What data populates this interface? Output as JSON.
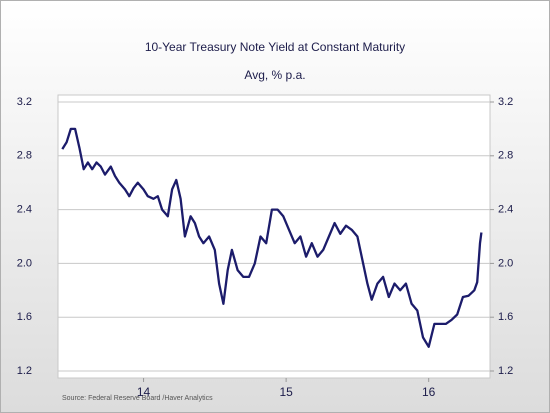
{
  "chart_data": {
    "type": "line",
    "title": "10-Year Treasury Note Yield at Constant Maturity",
    "subtitle": "Avg, % p.a.",
    "source": "Source:  Federal Reserve Board /Haver Analytics",
    "xlim": [
      2013.9,
      2016.93
    ],
    "xticks": [
      {
        "value": 2014.5,
        "label": "14"
      },
      {
        "value": 2015.5,
        "label": "15"
      },
      {
        "value": 2016.5,
        "label": "16"
      }
    ],
    "ylim": [
      1.2,
      3.2
    ],
    "yticks": [
      1.2,
      1.6,
      {
        "value": 2,
        "label": "2.0"
      },
      2.4,
      2.8,
      3.2
    ],
    "y2lim": [
      1.2,
      3.2
    ],
    "y2ticks": [
      1.2,
      1.6,
      {
        "value": 2,
        "label": "2.0"
      },
      2.4,
      2.8,
      3.2
    ],
    "grid": true,
    "series": [
      {
        "name": "10-Year Treasury Note Yield",
        "color": "#1c1c6b",
        "x": [
          2013.93,
          2013.96,
          2013.99,
          2014.02,
          2014.05,
          2014.08,
          2014.11,
          2014.14,
          2014.17,
          2014.2,
          2014.23,
          2014.27,
          2014.3,
          2014.33,
          2014.37,
          2014.4,
          2014.43,
          2014.46,
          2014.5,
          2014.53,
          2014.57,
          2014.6,
          2014.63,
          2014.67,
          2014.7,
          2014.73,
          2014.76,
          2014.79,
          2014.83,
          2014.86,
          2014.89,
          2014.92,
          2014.96,
          2015.0,
          2015.03,
          2015.06,
          2015.09,
          2015.12,
          2015.16,
          2015.2,
          2015.24,
          2015.28,
          2015.32,
          2015.36,
          2015.4,
          2015.44,
          2015.48,
          2015.52,
          2015.56,
          2015.6,
          2015.64,
          2015.68,
          2015.72,
          2015.76,
          2015.8,
          2015.84,
          2015.88,
          2015.92,
          2015.96,
          2016.0,
          2016.03,
          2016.07,
          2016.1,
          2016.14,
          2016.18,
          2016.22,
          2016.26,
          2016.3,
          2016.34,
          2016.38,
          2016.42,
          2016.46,
          2016.5,
          2016.54,
          2016.58,
          2016.62,
          2016.66,
          2016.7,
          2016.74,
          2016.78,
          2016.82,
          2016.84,
          2016.86,
          2016.87
        ],
        "values": [
          2.85,
          2.9,
          3.0,
          3.0,
          2.86,
          2.7,
          2.75,
          2.7,
          2.75,
          2.72,
          2.66,
          2.72,
          2.65,
          2.6,
          2.55,
          2.5,
          2.56,
          2.6,
          2.55,
          2.5,
          2.48,
          2.5,
          2.4,
          2.35,
          2.55,
          2.62,
          2.48,
          2.2,
          2.35,
          2.3,
          2.2,
          2.15,
          2.2,
          2.1,
          1.85,
          1.7,
          1.95,
          2.1,
          1.95,
          1.9,
          1.9,
          2.0,
          2.2,
          2.15,
          2.4,
          2.4,
          2.35,
          2.25,
          2.15,
          2.2,
          2.05,
          2.15,
          2.05,
          2.1,
          2.2,
          2.3,
          2.22,
          2.28,
          2.25,
          2.2,
          2.05,
          1.85,
          1.73,
          1.85,
          1.9,
          1.75,
          1.85,
          1.8,
          1.85,
          1.7,
          1.65,
          1.45,
          1.38,
          1.55,
          1.55,
          1.55,
          1.58,
          1.62,
          1.75,
          1.76,
          1.8,
          1.86,
          2.15,
          2.23
        ]
      }
    ]
  }
}
